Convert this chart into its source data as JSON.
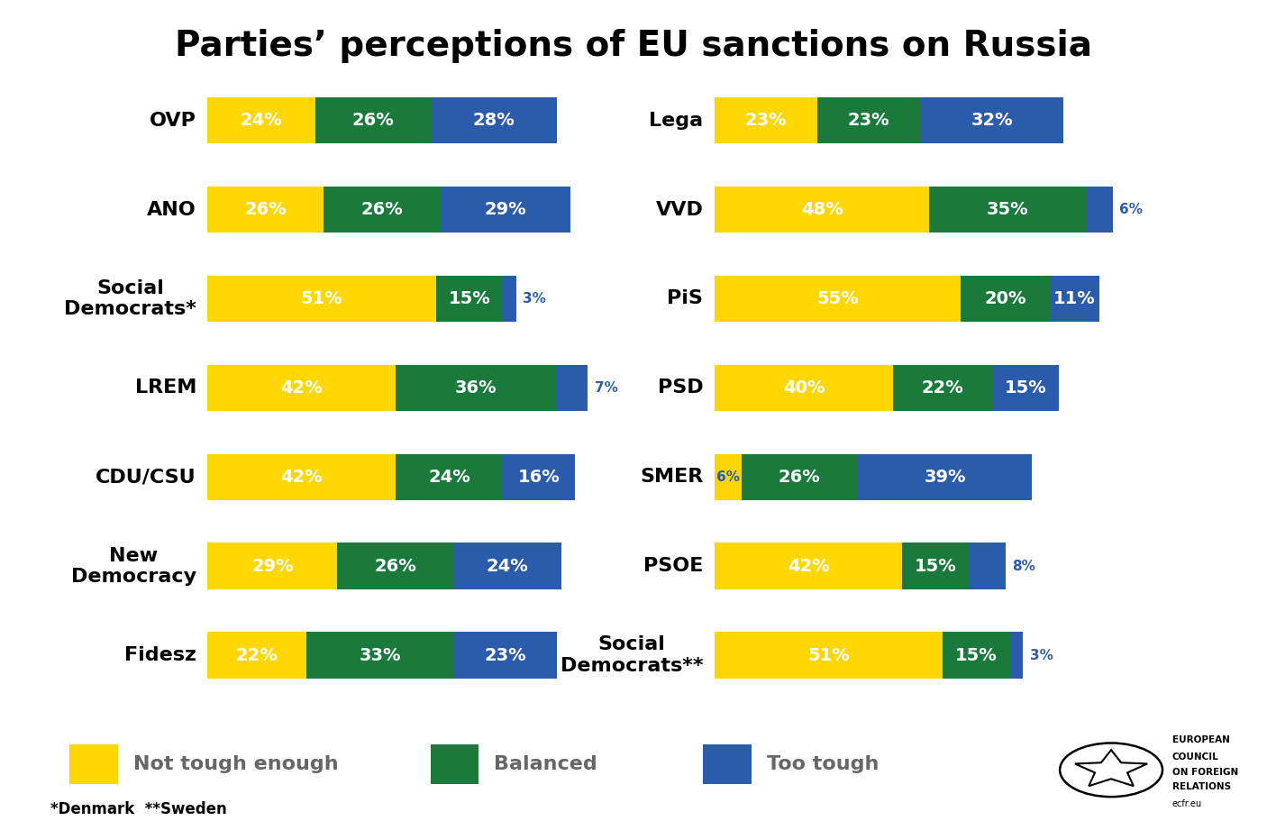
{
  "title": "Parties’ perceptions of EU sanctions on Russia",
  "colors": {
    "yellow": "#FFD700",
    "green": "#1a7a3c",
    "blue": "#2b5bab",
    "background": "#ffffff",
    "text_white": "#ffffff",
    "text_blue_label": "#2b5bab",
    "legend_text": "#666666"
  },
  "left_parties": [
    {
      "name": "OVP",
      "yellow": 24,
      "green": 26,
      "blue": 28
    },
    {
      "name": "ANO",
      "yellow": 26,
      "green": 26,
      "blue": 29
    },
    {
      "name": "Social\nDemocrats*",
      "yellow": 51,
      "green": 15,
      "blue": 3
    },
    {
      "name": "LREM",
      "yellow": 42,
      "green": 36,
      "blue": 7
    },
    {
      "name": "CDU/CSU",
      "yellow": 42,
      "green": 24,
      "blue": 16
    },
    {
      "name": "New\nDemocracy",
      "yellow": 29,
      "green": 26,
      "blue": 24
    },
    {
      "name": "Fidesz",
      "yellow": 22,
      "green": 33,
      "blue": 23
    }
  ],
  "right_parties": [
    {
      "name": "Lega",
      "yellow": 23,
      "green": 23,
      "blue": 32
    },
    {
      "name": "VVD",
      "yellow": 48,
      "green": 35,
      "blue": 6
    },
    {
      "name": "PiS",
      "yellow": 55,
      "green": 20,
      "blue": 11
    },
    {
      "name": "PSD",
      "yellow": 40,
      "green": 22,
      "blue": 15
    },
    {
      "name": "SMER",
      "yellow": 6,
      "green": 26,
      "blue": 39
    },
    {
      "name": "PSOE",
      "yellow": 42,
      "green": 15,
      "blue": 8
    },
    {
      "name": "Social\nDemocrats**",
      "yellow": 51,
      "green": 15,
      "blue": 3
    }
  ],
  "legend": {
    "not_tough_enough": "Not tough enough",
    "balanced": "Balanced",
    "too_tough": "Too tough"
  },
  "footnote": "*Denmark  **Sweden"
}
